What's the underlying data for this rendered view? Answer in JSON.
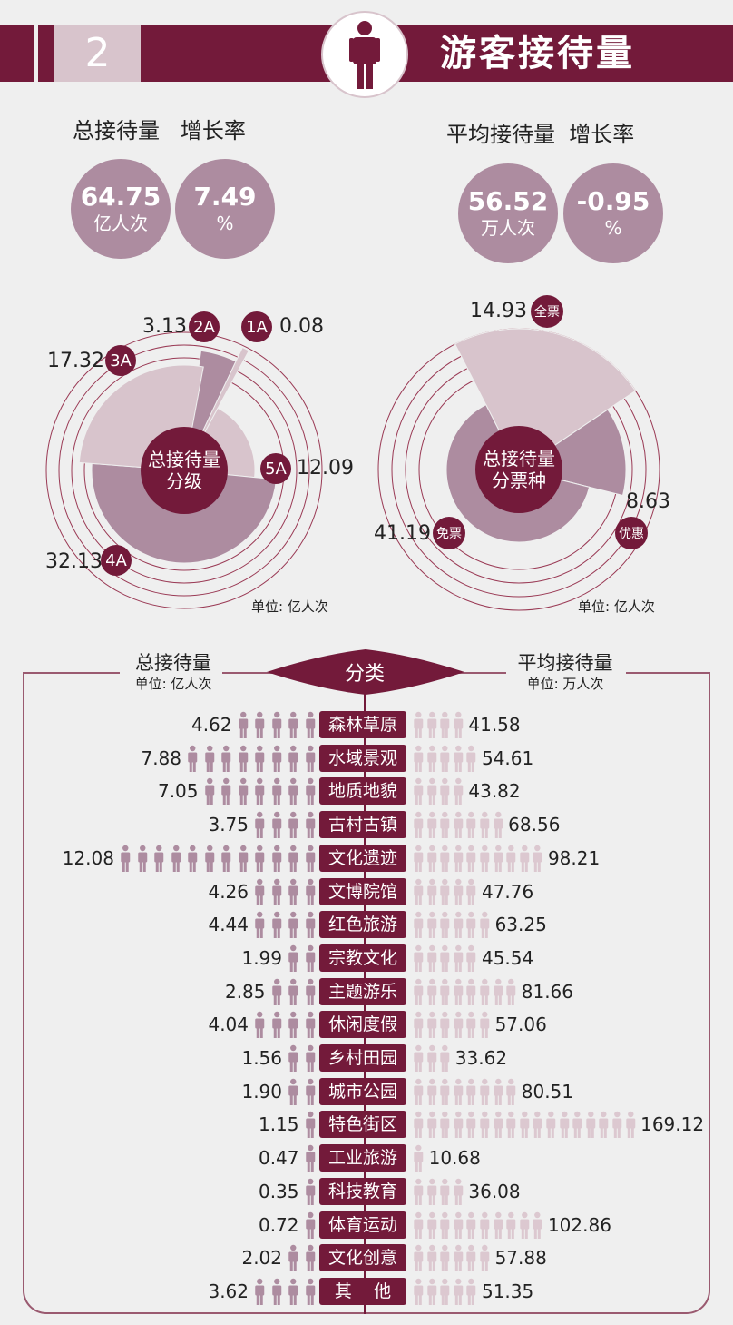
{
  "header": {
    "section_number": "2",
    "title": "游客接待量",
    "icon": "person-icon",
    "accent": "#731a3a"
  },
  "stats": {
    "left_heading": "总接待量   增长率",
    "right_heading": "平均接待量  增长率",
    "items": [
      {
        "value": "64.75",
        "unit": "亿人次"
      },
      {
        "value": "7.49",
        "unit": "%"
      },
      {
        "value": "56.52",
        "unit": "万人次"
      },
      {
        "value": "-0.95",
        "unit": "%"
      }
    ]
  },
  "chart_data": [
    {
      "type": "polar-area",
      "center_label": [
        "总接待量",
        "分级"
      ],
      "unit": "单位: 亿人次",
      "categories": [
        "2A",
        "1A",
        "5A",
        "4A",
        "3A"
      ],
      "values": [
        3.13,
        0.08,
        12.09,
        32.13,
        17.32
      ],
      "value_labels": [
        "3.13",
        "0.08",
        "12.09",
        "32.13",
        "17.32"
      ],
      "colors": [
        "#ad8ca0",
        "#d8c4cc",
        "#d8c4cc",
        "#ad8ca0",
        "#d8c4cc"
      ]
    },
    {
      "type": "polar-area",
      "center_label": [
        "总接待量",
        "分票种"
      ],
      "unit": "单位: 亿人次",
      "categories": [
        "全票",
        "优惠",
        "免票"
      ],
      "values": [
        14.93,
        8.63,
        41.19
      ],
      "value_labels": [
        "14.93",
        "8.63",
        "41.19"
      ],
      "colors": [
        "#d8c4cc",
        "#ad8ca0",
        "#ad8ca0"
      ]
    },
    {
      "type": "pictogram-bar",
      "center_label": "分类",
      "left_title": "总接待量",
      "left_unit": "单位: 亿人次",
      "right_title": "平均接待量",
      "right_unit": "单位: 万人次",
      "left_color": "#ad8ca0",
      "right_color": "#dcc8d0",
      "categories": [
        "森林草原",
        "水域景观",
        "地质地貌",
        "古村古镇",
        "文化遗迹",
        "文博院馆",
        "红色旅游",
        "宗教文化",
        "主题游乐",
        "休闲度假",
        "乡村田园",
        "城市公园",
        "特色街区",
        "工业旅游",
        "科技教育",
        "体育运动",
        "文化创意",
        "其    他"
      ],
      "left_values": [
        "4.62",
        "7.88",
        "7.05",
        "3.75",
        "12.08",
        "4.26",
        "4.44",
        "1.99",
        "2.85",
        "4.04",
        "1.56",
        "1.90",
        "1.15",
        "0.47",
        "0.35",
        "0.72",
        "2.02",
        "3.62"
      ],
      "right_values": [
        "41.58",
        "54.61",
        "43.82",
        "68.56",
        "98.21",
        "47.76",
        "63.25",
        "45.54",
        "81.66",
        "57.06",
        "33.62",
        "80.51",
        "169.12",
        "10.68",
        "36.08",
        "102.86",
        "57.88",
        "51.35"
      ]
    }
  ]
}
